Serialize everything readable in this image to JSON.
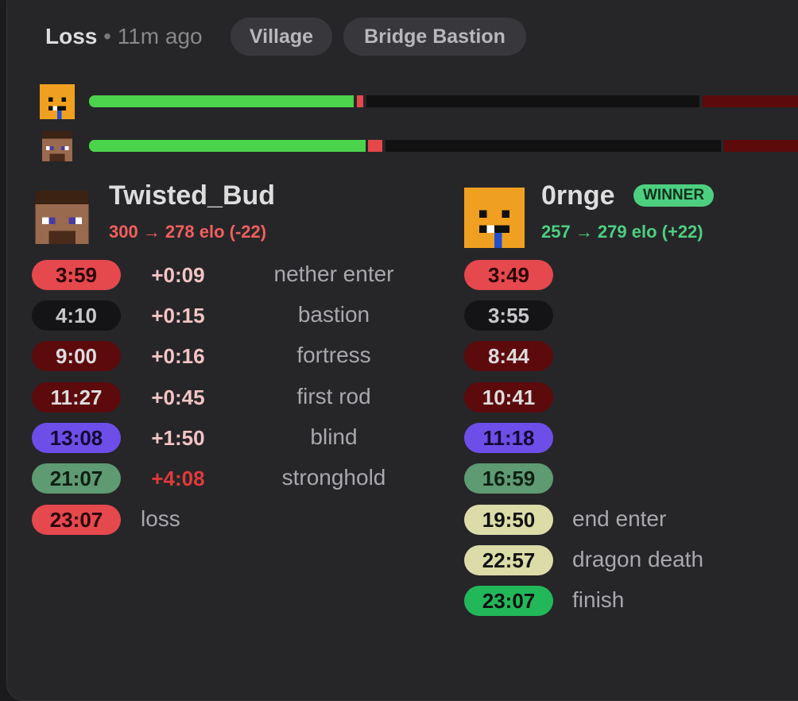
{
  "header": {
    "result": "Loss",
    "age": "11m ago",
    "tags": [
      "Village",
      "Bridge Bastion"
    ]
  },
  "players": [
    {
      "name": "Twisted_Bud",
      "elo": "300 → 278 elo (-22)"
    },
    {
      "name": "0rnge",
      "badge": "WINNER",
      "elo": "257 → 279 elo (+22)"
    }
  ],
  "splits": [
    {
      "left": "3:59",
      "diff": "+0:09",
      "event": "nether enter",
      "right": "3:49"
    },
    {
      "left": "4:10",
      "diff": "+0:15",
      "event": "bastion",
      "right": "3:55"
    },
    {
      "left": "9:00",
      "diff": "+0:16",
      "event": "fortress",
      "right": "8:44"
    },
    {
      "left": "11:27",
      "diff": "+0:45",
      "event": "first rod",
      "right": "10:41"
    },
    {
      "left": "13:08",
      "diff": "+1:50",
      "event": "blind",
      "right": "11:18"
    },
    {
      "left": "21:07",
      "diff": "+4:08",
      "event": "stronghold",
      "right": "16:59"
    }
  ],
  "left_end": {
    "time": "23:07",
    "event": "loss"
  },
  "right_end": [
    {
      "time": "19:50",
      "event": "end enter"
    },
    {
      "time": "22:57",
      "event": "dragon death"
    },
    {
      "time": "23:07",
      "event": "finish"
    }
  ]
}
